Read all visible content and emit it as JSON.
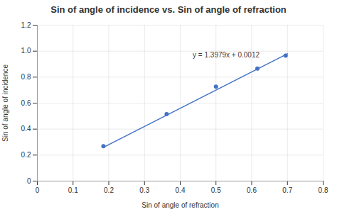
{
  "chart_data": {
    "type": "scatter",
    "title": "Sin of angle of incidence vs. Sin of angle of refraction",
    "xlabel": "Sin of angle of refraction",
    "ylabel": "Sin of angle of incidence",
    "x": [
      0.185,
      0.362,
      0.5,
      0.616,
      0.695
    ],
    "values": [
      0.268,
      0.515,
      0.727,
      0.866,
      0.966
    ],
    "color": "#4472C4",
    "trendline": {
      "x": [
        0.19,
        0.7
      ],
      "values": [
        0.266801,
        0.97973
      ],
      "color": "#4472C4"
    },
    "annotations": [
      {
        "text": "y = 1.3979x + 0.0012",
        "x": 0.435,
        "y": 0.97,
        "color": "#404040"
      }
    ],
    "xlim": [
      0,
      0.8
    ],
    "ylim": [
      0,
      1.2
    ],
    "xticks": [
      0,
      0.1,
      0.2,
      0.3,
      0.4,
      0.5,
      0.6,
      0.7,
      0.8
    ],
    "yticks": [
      0,
      0.2,
      0.4,
      0.6,
      0.8,
      {
        "value": 1,
        "label": "1.0"
      },
      1.2
    ],
    "grid": true
  }
}
